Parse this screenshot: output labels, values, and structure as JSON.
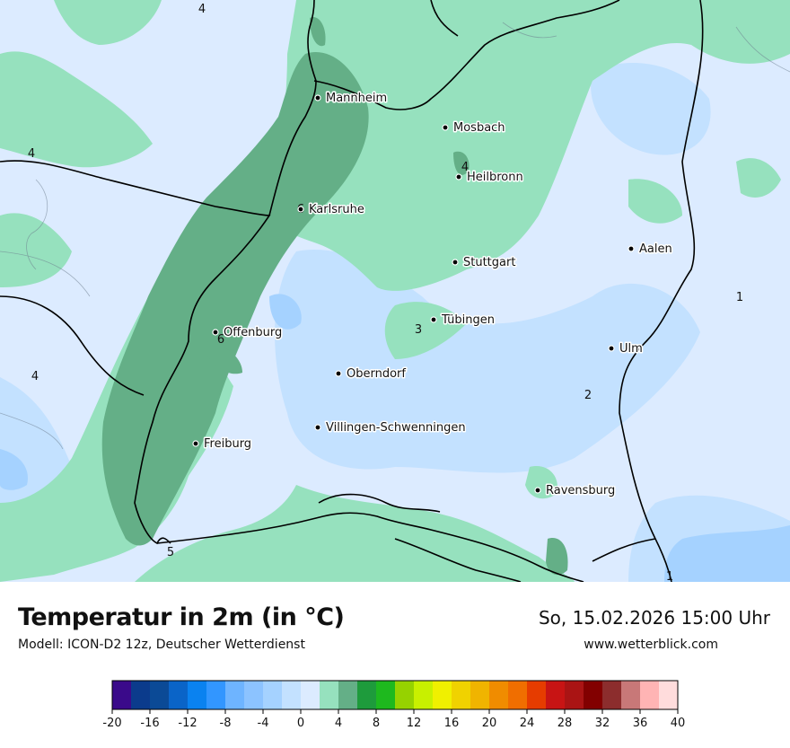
{
  "map": {
    "cities": [
      {
        "name": "Mannheim"
      },
      {
        "name": "Mosbach"
      },
      {
        "name": "Heilbronn"
      },
      {
        "name": "Karlsruhe"
      },
      {
        "name": "Stuttgart"
      },
      {
        "name": "Aalen"
      },
      {
        "name": "Tübingen"
      },
      {
        "name": "Offenburg"
      },
      {
        "name": "Ulm"
      },
      {
        "name": "Oberndorf"
      },
      {
        "name": "Villingen-Schwenningen"
      },
      {
        "name": "Freiburg"
      },
      {
        "name": "Ravensburg"
      }
    ],
    "isotherm_labels": [
      "4",
      "4",
      "4",
      "4",
      "6",
      "3",
      "1",
      "2",
      "5",
      "1",
      "6"
    ]
  },
  "footer": {
    "title": "Temperatur in 2m (in °C)",
    "model": "Modell: ICON-D2 12z, Deutscher Wetterdienst",
    "datetime": "So, 15.02.2026 15:00 Uhr",
    "website": "www.wetterblick.com"
  },
  "legend": {
    "colors": [
      "#3a0a8a",
      "#0b3b8c",
      "#0b4a96",
      "#0a64c8",
      "#0a82f0",
      "#3296ff",
      "#6eb4ff",
      "#8cc3ff",
      "#a5d2ff",
      "#c3e1ff",
      "#dcebff",
      "#96e1be",
      "#64af87",
      "#1e9b3c",
      "#1eb91e",
      "#96d200",
      "#c8f000",
      "#f0f000",
      "#f0d200",
      "#f0b400",
      "#f08c00",
      "#f06e00",
      "#e63c00",
      "#c81414",
      "#aa1414",
      "#820000",
      "#8c2d2d",
      "#c87878",
      "#ffb4b4",
      "#ffdcdc"
    ],
    "tick_labels": [
      "-20",
      "-16",
      "-12",
      "-8",
      "-4",
      "0",
      "4",
      "8",
      "12",
      "16",
      "20",
      "24",
      "28",
      "32",
      "36",
      "40"
    ]
  }
}
